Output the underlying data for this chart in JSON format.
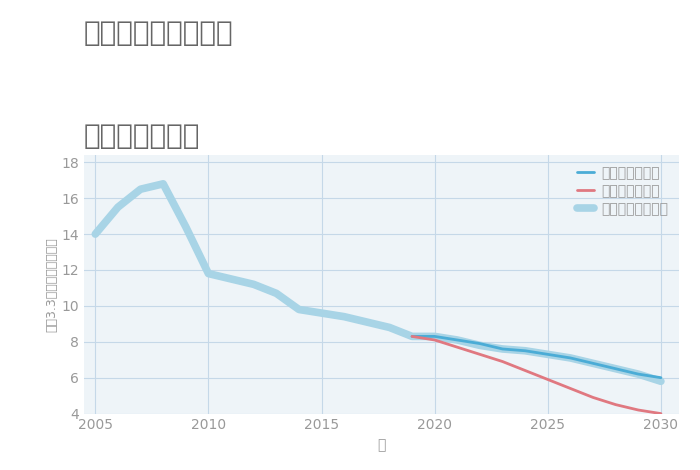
{
  "title_line1": "岐阜県関市市平賀の",
  "title_line2": "土地の価格推移",
  "xlabel": "年",
  "ylabel": "坪（3.3㎡）単価（万円）",
  "background_color": "#ffffff",
  "plot_bg_color": "#eef4f8",
  "grid_color": "#c5d8e8",
  "xlim": [
    2004.5,
    2030.8
  ],
  "ylim": [
    4,
    18.4
  ],
  "yticks": [
    4,
    6,
    8,
    10,
    12,
    14,
    16,
    18
  ],
  "xticks": [
    2005,
    2010,
    2015,
    2020,
    2025,
    2030
  ],
  "good_scenario": {
    "label": "グッドシナリオ",
    "color": "#4bacd6",
    "linewidth": 2.0,
    "years": [
      2019,
      2020,
      2021,
      2022,
      2023,
      2024,
      2025,
      2026,
      2027,
      2028,
      2029,
      2030
    ],
    "values": [
      8.3,
      8.3,
      8.1,
      7.9,
      7.6,
      7.5,
      7.3,
      7.1,
      6.8,
      6.5,
      6.2,
      6.0
    ]
  },
  "bad_scenario": {
    "label": "バッドシナリオ",
    "color": "#e07880",
    "linewidth": 2.0,
    "years": [
      2019,
      2020,
      2021,
      2022,
      2023,
      2024,
      2025,
      2026,
      2027,
      2028,
      2029,
      2030
    ],
    "values": [
      8.3,
      8.1,
      7.7,
      7.3,
      6.9,
      6.4,
      5.9,
      5.4,
      4.9,
      4.5,
      4.2,
      4.0
    ]
  },
  "normal_scenario": {
    "label": "ノーマルシナリオ",
    "color": "#a8d4e6",
    "linewidth": 5.5,
    "years": [
      2005,
      2006,
      2007,
      2008,
      2009,
      2010,
      2011,
      2012,
      2013,
      2014,
      2015,
      2016,
      2017,
      2018,
      2019,
      2020,
      2021,
      2022,
      2023,
      2024,
      2025,
      2026,
      2027,
      2028,
      2029,
      2030
    ],
    "values": [
      14.0,
      15.5,
      16.5,
      16.8,
      14.4,
      11.8,
      11.5,
      11.2,
      10.7,
      9.8,
      9.6,
      9.4,
      9.1,
      8.8,
      8.3,
      8.3,
      8.1,
      7.8,
      7.6,
      7.5,
      7.3,
      7.1,
      6.8,
      6.5,
      6.2,
      5.8
    ]
  },
  "title_color": "#666666",
  "title_fontsize": 20,
  "tick_color": "#999999",
  "label_color": "#999999",
  "legend_fontsize": 10,
  "axis_fontsize": 10
}
